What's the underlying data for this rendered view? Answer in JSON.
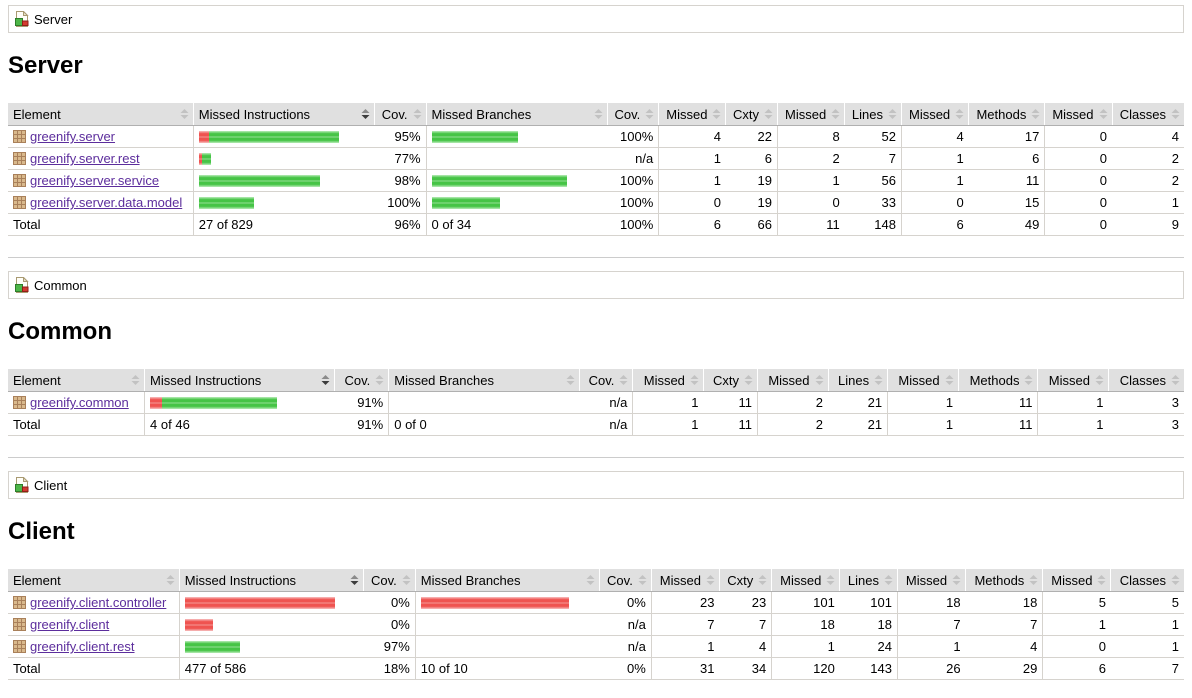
{
  "colors": {
    "covered_bar_green": "#46c446",
    "missed_bar_red": "#ef5350",
    "header_background": "#e0e0e0",
    "table_border": "#d6d3ce",
    "link_purple": "#5c2d9c"
  },
  "columns": [
    "Element",
    "Missed Instructions",
    "Cov.",
    "Missed Branches",
    "Cov.",
    "Missed",
    "Cxty",
    "Missed",
    "Lines",
    "Missed",
    "Methods",
    "Missed",
    "Classes"
  ],
  "sorted_column": "Missed Instructions",
  "sections": [
    {
      "id": "server",
      "breadcrumb_label": "Server",
      "heading": "Server",
      "rows": [
        {
          "element": "greenify.server",
          "instr_bar": {
            "red": 10,
            "green": 130
          },
          "instr_cov": "95%",
          "branch_bar": {
            "red": 0,
            "green": 86
          },
          "branch_cov": "100%",
          "cells": [
            "4",
            "22",
            "8",
            "52",
            "4",
            "17",
            "0",
            "4"
          ]
        },
        {
          "element": "greenify.server.rest",
          "instr_bar": {
            "red": 3,
            "green": 9
          },
          "instr_cov": "77%",
          "branch_bar": {
            "red": 0,
            "green": 0
          },
          "branch_cov": "n/a",
          "cells": [
            "1",
            "6",
            "2",
            "7",
            "1",
            "6",
            "0",
            "2"
          ]
        },
        {
          "element": "greenify.server.service",
          "instr_bar": {
            "red": 0,
            "green": 121
          },
          "instr_cov": "98%",
          "branch_bar": {
            "red": 0,
            "green": 135
          },
          "branch_cov": "100%",
          "cells": [
            "1",
            "19",
            "1",
            "56",
            "1",
            "11",
            "0",
            "2"
          ]
        },
        {
          "element": "greenify.server.data.model",
          "instr_bar": {
            "red": 0,
            "green": 55
          },
          "instr_cov": "100%",
          "branch_bar": {
            "red": 0,
            "green": 68
          },
          "branch_cov": "100%",
          "cells": [
            "0",
            "19",
            "0",
            "33",
            "0",
            "15",
            "0",
            "1"
          ]
        }
      ],
      "total": {
        "label": "Total",
        "instr_text": "27 of 829",
        "instr_cov": "96%",
        "branch_text": "0 of 34",
        "branch_cov": "100%",
        "cells": [
          "6",
          "66",
          "11",
          "148",
          "6",
          "49",
          "0",
          "9"
        ]
      }
    },
    {
      "id": "common",
      "breadcrumb_label": "Common",
      "heading": "Common",
      "rows": [
        {
          "element": "greenify.common",
          "instr_bar": {
            "red": 12,
            "green": 115
          },
          "instr_cov": "91%",
          "branch_bar": {
            "red": 0,
            "green": 0
          },
          "branch_cov": "n/a",
          "cells": [
            "1",
            "11",
            "2",
            "21",
            "1",
            "11",
            "1",
            "3"
          ]
        }
      ],
      "total": {
        "label": "Total",
        "instr_text": "4 of 46",
        "instr_cov": "91%",
        "branch_text": "0 of 0",
        "branch_cov": "n/a",
        "cells": [
          "1",
          "11",
          "2",
          "21",
          "1",
          "11",
          "1",
          "3"
        ]
      }
    },
    {
      "id": "client",
      "breadcrumb_label": "Client",
      "heading": "Client",
      "rows": [
        {
          "element": "greenify.client.controller",
          "instr_bar": {
            "red": 150,
            "green": 0
          },
          "instr_cov": "0%",
          "branch_bar": {
            "red": 148,
            "green": 0
          },
          "branch_cov": "0%",
          "cells": [
            "23",
            "23",
            "101",
            "101",
            "18",
            "18",
            "5",
            "5"
          ]
        },
        {
          "element": "greenify.client",
          "instr_bar": {
            "red": 28,
            "green": 0
          },
          "instr_cov": "0%",
          "branch_bar": {
            "red": 0,
            "green": 0
          },
          "branch_cov": "n/a",
          "cells": [
            "7",
            "7",
            "18",
            "18",
            "7",
            "7",
            "1",
            "1"
          ]
        },
        {
          "element": "greenify.client.rest",
          "instr_bar": {
            "red": 0,
            "green": 55
          },
          "instr_cov": "97%",
          "branch_bar": {
            "red": 0,
            "green": 0
          },
          "branch_cov": "n/a",
          "cells": [
            "1",
            "4",
            "1",
            "24",
            "1",
            "4",
            "0",
            "1"
          ]
        }
      ],
      "total": {
        "label": "Total",
        "instr_text": "477 of 586",
        "instr_cov": "18%",
        "branch_text": "10 of 10",
        "branch_cov": "0%",
        "cells": [
          "31",
          "34",
          "120",
          "143",
          "26",
          "29",
          "6",
          "7"
        ]
      }
    }
  ]
}
